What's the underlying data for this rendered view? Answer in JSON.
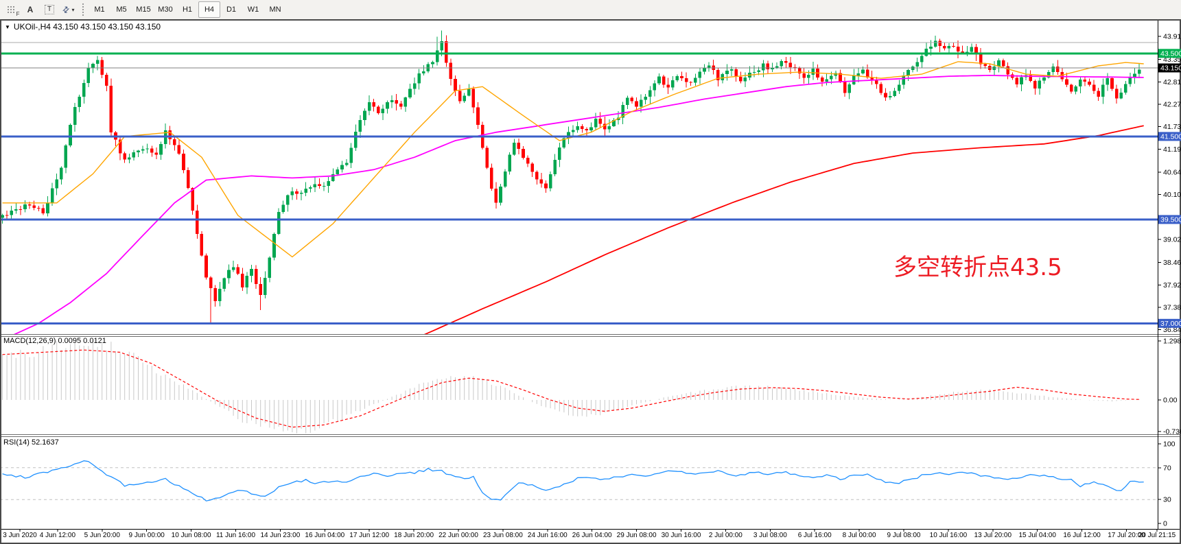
{
  "toolbar": {
    "tools": [
      {
        "name": "chart-grid-f-icon",
        "glyph": "F",
        "style": "grid"
      },
      {
        "name": "font-icon",
        "glyph": "A",
        "style": "plain"
      },
      {
        "name": "text-label-icon",
        "glyph": "T",
        "style": "dotted-box"
      },
      {
        "name": "crosshair-arrows-icon",
        "glyph": "⇄",
        "style": "arrow"
      }
    ],
    "caret_glyph": "▾",
    "timeframes": [
      "M1",
      "M5",
      "M15",
      "M30",
      "H1",
      "H4",
      "D1",
      "W1",
      "MN"
    ],
    "active_timeframe": "H4"
  },
  "chart": {
    "title": "UKOil-,H4  43.150 43.150 43.150 43.150",
    "symbol": "UKOil-",
    "timeframe": "H4",
    "dropdown_glyph": "▼",
    "annotation": {
      "text": "多空转折点43.5",
      "color": "#ED1C24"
    },
    "current_price": "43.150",
    "price_ticks": [
      "43.910",
      "43.355",
      "42.815",
      "42.275",
      "41.735",
      "41.195",
      "40.640",
      "40.100",
      "39.020",
      "38.465",
      "37.925",
      "37.385",
      "36.845"
    ],
    "price_badges": [
      {
        "value": "43.500",
        "price": 43.5,
        "color": "#00B050"
      },
      {
        "value": "43.150",
        "price": 43.15,
        "color": "#000000"
      },
      {
        "value": "41.500",
        "price": 41.5,
        "color": "#3A5FC8"
      },
      {
        "value": "39.500",
        "price": 39.5,
        "color": "#3A5FC8"
      },
      {
        "value": "37.000",
        "price": 37.0,
        "color": "#3A5FC8"
      }
    ],
    "hlines": [
      {
        "name": "gray-line-4376",
        "price": 43.76,
        "color": "#A8A8A8",
        "width": 1
      },
      {
        "name": "green-line-43500",
        "price": 43.5,
        "color": "#00B050",
        "width": 3
      },
      {
        "name": "blue-line-41500",
        "price": 41.5,
        "color": "#3A5FC8",
        "width": 3
      },
      {
        "name": "blue-line-39500",
        "price": 39.5,
        "color": "#3A5FC8",
        "width": 3
      },
      {
        "name": "blue-line-37000",
        "price": 37.0,
        "color": "#3A5FC8",
        "width": 3
      }
    ],
    "current_price_line": {
      "price": 43.15,
      "color": "#808080"
    }
  },
  "macd": {
    "label": "MACD(12,26,9) 0.0095 0.0121",
    "scale": [
      "1.2985",
      "0.00",
      "-0.7362"
    ]
  },
  "rsi": {
    "label": "RSI(14) 52.1637",
    "scale": [
      "100",
      "70",
      "30",
      "0"
    ],
    "levels": [
      70,
      30
    ]
  },
  "time_axis": [
    "3 Jun 2020",
    "4 Jun 12:00",
    "5 Jun 20:00",
    "9 Jun 00:00",
    "10 Jun 08:00",
    "11 Jun 16:00",
    "14 Jun 23:00",
    "16 Jun 04:00",
    "17 Jun 12:00",
    "18 Jun 20:00",
    "22 Jun 00:00",
    "23 Jun 08:00",
    "24 Jun 16:00",
    "26 Jun 04:00",
    "29 Jun 08:00",
    "30 Jun 16:00",
    "2 Jul 00:00",
    "3 Jul 08:00",
    "6 Jul 16:00",
    "8 Jul 00:00",
    "9 Jul 08:00",
    "10 Jul 16:00",
    "13 Jul 20:00",
    "15 Jul 04:00",
    "16 Jul 12:00",
    "17 Jul 20:00",
    "20 Jul 21:15"
  ],
  "chart_data": {
    "type": "candlestick",
    "symbol": "UKOil-",
    "timeframe": "H4",
    "title": "UKOil-,H4",
    "ohlc_current": {
      "open": 43.15,
      "high": 43.15,
      "low": 43.15,
      "close": 43.15
    },
    "price_axis_visible_range": [
      36.74,
      44.33
    ],
    "candle_up_color": "#00A650",
    "candle_down_color": "#FF0000",
    "ma_colors": {
      "fast": "#FFA500",
      "mid": "#FF00FF",
      "slow": "#FF0000"
    },
    "macd_colors": {
      "histogram": "#C8C8C8",
      "signal": "#FF0000"
    },
    "rsi_color": "#1E90FF",
    "level_color": "#C0C0C0",
    "close_path": [
      [
        0,
        39.6
      ],
      [
        6,
        39.9
      ],
      [
        9,
        39.7
      ],
      [
        13,
        40.7
      ],
      [
        15,
        41.8
      ],
      [
        19,
        43.2
      ],
      [
        21,
        43.3
      ],
      [
        23,
        42.7
      ],
      [
        24,
        41.6
      ],
      [
        27,
        40.9
      ],
      [
        30,
        41.2
      ],
      [
        34,
        41.1
      ],
      [
        36,
        41.6
      ],
      [
        39,
        41.1
      ],
      [
        41,
        40.2
      ],
      [
        43,
        39.2
      ],
      [
        45,
        38.1
      ],
      [
        47,
        37.5
      ],
      [
        49,
        38.1
      ],
      [
        51,
        38.4
      ],
      [
        53,
        37.9
      ],
      [
        55,
        38.3
      ],
      [
        57,
        37.7
      ],
      [
        59,
        38.6
      ],
      [
        61,
        39.7
      ],
      [
        64,
        40.2
      ],
      [
        66,
        40.1
      ],
      [
        69,
        40.4
      ],
      [
        71,
        40.3
      ],
      [
        73,
        40.6
      ],
      [
        76,
        40.9
      ],
      [
        78,
        41.6
      ],
      [
        81,
        42.3
      ],
      [
        83,
        42.1
      ],
      [
        86,
        42.4
      ],
      [
        88,
        42.2
      ],
      [
        90,
        42.7
      ],
      [
        93,
        43.1
      ],
      [
        95,
        43.3
      ],
      [
        97,
        43.75
      ],
      [
        99,
        42.9
      ],
      [
        101,
        42.4
      ],
      [
        103,
        42.6
      ],
      [
        105,
        41.8
      ],
      [
        107,
        40.7
      ],
      [
        109,
        39.9
      ],
      [
        111,
        40.7
      ],
      [
        113,
        41.4
      ],
      [
        115,
        41.0
      ],
      [
        118,
        40.5
      ],
      [
        120,
        40.3
      ],
      [
        122,
        40.9
      ],
      [
        124,
        41.5
      ],
      [
        127,
        41.8
      ],
      [
        129,
        41.6
      ],
      [
        131,
        41.9
      ],
      [
        133,
        41.7
      ],
      [
        136,
        42.0
      ],
      [
        138,
        42.4
      ],
      [
        140,
        42.2
      ],
      [
        143,
        42.6
      ],
      [
        145,
        42.9
      ],
      [
        147,
        42.7
      ],
      [
        149,
        43.0
      ],
      [
        152,
        42.8
      ],
      [
        154,
        43.1
      ],
      [
        156,
        43.2
      ],
      [
        158,
        42.9
      ],
      [
        161,
        43.1
      ],
      [
        163,
        42.8
      ],
      [
        165,
        43.0
      ],
      [
        168,
        43.2
      ],
      [
        170,
        43.1
      ],
      [
        172,
        43.3
      ],
      [
        175,
        43.1
      ],
      [
        177,
        42.9
      ],
      [
        179,
        43.1
      ],
      [
        181,
        42.8
      ],
      [
        184,
        43.0
      ],
      [
        186,
        42.6
      ],
      [
        188,
        42.9
      ],
      [
        190,
        43.1
      ],
      [
        193,
        42.7
      ],
      [
        195,
        42.4
      ],
      [
        197,
        42.6
      ],
      [
        199,
        43.0
      ],
      [
        202,
        43.3
      ],
      [
        204,
        43.6
      ],
      [
        206,
        43.75
      ],
      [
        208,
        43.6
      ],
      [
        210,
        43.7
      ],
      [
        212,
        43.5
      ],
      [
        214,
        43.6
      ],
      [
        216,
        43.3
      ],
      [
        218,
        43.1
      ],
      [
        220,
        43.3
      ],
      [
        222,
        43.0
      ],
      [
        224,
        42.8
      ],
      [
        226,
        43.0
      ],
      [
        228,
        42.7
      ],
      [
        230,
        42.9
      ],
      [
        232,
        43.2
      ],
      [
        234,
        42.9
      ],
      [
        236,
        42.6
      ],
      [
        238,
        42.9
      ],
      [
        240,
        42.7
      ],
      [
        242,
        42.5
      ],
      [
        244,
        42.9
      ],
      [
        246,
        42.4
      ],
      [
        248,
        42.8
      ],
      [
        250,
        43.05
      ],
      [
        251,
        43.15
      ]
    ],
    "forced_extremes": {
      "46": {
        "low": 37.02
      },
      "57": {
        "low": 37.32
      },
      "96": {
        "high": 43.9
      },
      "97": {
        "high": 44.05
      },
      "206": {
        "high": 43.93
      }
    },
    "ma_fast_orange": [
      [
        0,
        39.9
      ],
      [
        12,
        39.9
      ],
      [
        20,
        40.6
      ],
      [
        27,
        41.5
      ],
      [
        37,
        41.6
      ],
      [
        44,
        41.0
      ],
      [
        52,
        39.6
      ],
      [
        64,
        38.6
      ],
      [
        73,
        39.4
      ],
      [
        82,
        40.5
      ],
      [
        91,
        41.6
      ],
      [
        100,
        42.6
      ],
      [
        106,
        42.7
      ],
      [
        115,
        42.0
      ],
      [
        123,
        41.4
      ],
      [
        130,
        41.6
      ],
      [
        139,
        42.1
      ],
      [
        148,
        42.5
      ],
      [
        158,
        42.9
      ],
      [
        167,
        43.0
      ],
      [
        176,
        43.05
      ],
      [
        185,
        43.0
      ],
      [
        194,
        42.9
      ],
      [
        203,
        43.0
      ],
      [
        211,
        43.3
      ],
      [
        218,
        43.25
      ],
      [
        226,
        43.0
      ],
      [
        233,
        42.95
      ],
      [
        242,
        43.2
      ],
      [
        248,
        43.28
      ],
      [
        252,
        43.25
      ]
    ],
    "ma_mid_magenta": [
      [
        0,
        36.6
      ],
      [
        8,
        37.0
      ],
      [
        15,
        37.5
      ],
      [
        23,
        38.2
      ],
      [
        30,
        39.0
      ],
      [
        38,
        39.9
      ],
      [
        45,
        40.45
      ],
      [
        55,
        40.55
      ],
      [
        64,
        40.5
      ],
      [
        73,
        40.55
      ],
      [
        82,
        40.7
      ],
      [
        91,
        41.0
      ],
      [
        100,
        41.4
      ],
      [
        109,
        41.6
      ],
      [
        118,
        41.75
      ],
      [
        127,
        41.9
      ],
      [
        136,
        42.05
      ],
      [
        145,
        42.2
      ],
      [
        155,
        42.4
      ],
      [
        164,
        42.55
      ],
      [
        173,
        42.7
      ],
      [
        182,
        42.8
      ],
      [
        191,
        42.85
      ],
      [
        200,
        42.9
      ],
      [
        209,
        42.95
      ],
      [
        218,
        42.97
      ],
      [
        227,
        42.95
      ],
      [
        236,
        42.94
      ],
      [
        245,
        42.93
      ],
      [
        252,
        42.92
      ]
    ],
    "ma_slow_red": [
      [
        93,
        36.72
      ],
      [
        106,
        37.35
      ],
      [
        120,
        38.0
      ],
      [
        133,
        38.65
      ],
      [
        147,
        39.3
      ],
      [
        161,
        39.9
      ],
      [
        174,
        40.4
      ],
      [
        188,
        40.85
      ],
      [
        201,
        41.1
      ],
      [
        215,
        41.22
      ],
      [
        230,
        41.32
      ],
      [
        242,
        41.52
      ],
      [
        252,
        41.76
      ]
    ],
    "macd_range": [
      -0.7362,
      1.2985
    ],
    "macd_current": [
      0.0095,
      0.0121
    ],
    "macd_histogram": [
      [
        0,
        0.9
      ],
      [
        9,
        1.1
      ],
      [
        15,
        1.25
      ],
      [
        21,
        1.3
      ],
      [
        27,
        1.1
      ],
      [
        35,
        0.6
      ],
      [
        42,
        0.2
      ],
      [
        47,
        -0.1
      ],
      [
        53,
        -0.45
      ],
      [
        61,
        -0.65
      ],
      [
        65,
        -0.74
      ],
      [
        70,
        -0.6
      ],
      [
        76,
        -0.35
      ],
      [
        82,
        -0.1
      ],
      [
        88,
        0.15
      ],
      [
        94,
        0.4
      ],
      [
        100,
        0.55
      ],
      [
        106,
        0.45
      ],
      [
        112,
        0.2
      ],
      [
        118,
        -0.1
      ],
      [
        124,
        -0.3
      ],
      [
        130,
        -0.35
      ],
      [
        136,
        -0.2
      ],
      [
        142,
        -0.05
      ],
      [
        148,
        0.1
      ],
      [
        155,
        0.2
      ],
      [
        161,
        0.28
      ],
      [
        167,
        0.3
      ],
      [
        173,
        0.26
      ],
      [
        179,
        0.18
      ],
      [
        185,
        0.1
      ],
      [
        191,
        0.04
      ],
      [
        197,
        0.0
      ],
      [
        203,
        0.06
      ],
      [
        209,
        0.15
      ],
      [
        215,
        0.22
      ],
      [
        221,
        0.2
      ],
      [
        227,
        0.12
      ],
      [
        233,
        0.05
      ],
      [
        239,
        0.0
      ],
      [
        245,
        -0.03
      ],
      [
        251,
        0.01
      ]
    ],
    "macd_signal": [
      [
        0,
        1.0
      ],
      [
        9,
        1.05
      ],
      [
        18,
        1.1
      ],
      [
        26,
        1.05
      ],
      [
        33,
        0.8
      ],
      [
        41,
        0.35
      ],
      [
        48,
        -0.05
      ],
      [
        56,
        -0.4
      ],
      [
        64,
        -0.6
      ],
      [
        71,
        -0.55
      ],
      [
        79,
        -0.35
      ],
      [
        85,
        -0.1
      ],
      [
        91,
        0.15
      ],
      [
        97,
        0.38
      ],
      [
        103,
        0.48
      ],
      [
        109,
        0.42
      ],
      [
        115,
        0.22
      ],
      [
        121,
        0.0
      ],
      [
        127,
        -0.18
      ],
      [
        133,
        -0.25
      ],
      [
        139,
        -0.18
      ],
      [
        145,
        -0.06
      ],
      [
        151,
        0.06
      ],
      [
        157,
        0.16
      ],
      [
        163,
        0.24
      ],
      [
        170,
        0.27
      ],
      [
        176,
        0.25
      ],
      [
        182,
        0.2
      ],
      [
        188,
        0.13
      ],
      [
        194,
        0.06
      ],
      [
        200,
        0.02
      ],
      [
        206,
        0.06
      ],
      [
        212,
        0.13
      ],
      [
        218,
        0.19
      ],
      [
        224,
        0.28
      ],
      [
        230,
        0.22
      ],
      [
        236,
        0.13
      ],
      [
        242,
        0.07
      ],
      [
        248,
        0.02
      ],
      [
        251,
        0.01
      ]
    ],
    "rsi_range": [
      0,
      100
    ],
    "rsi_current": 52.1637,
    "rsi_series": [
      [
        0,
        62
      ],
      [
        5,
        58
      ],
      [
        9,
        64
      ],
      [
        14,
        70
      ],
      [
        18,
        80
      ],
      [
        23,
        62
      ],
      [
        27,
        48
      ],
      [
        32,
        52
      ],
      [
        36,
        56
      ],
      [
        41,
        40
      ],
      [
        45,
        29
      ],
      [
        48,
        33
      ],
      [
        52,
        42
      ],
      [
        55,
        38
      ],
      [
        58,
        33
      ],
      [
        61,
        45
      ],
      [
        64,
        52
      ],
      [
        67,
        54
      ],
      [
        70,
        50
      ],
      [
        73,
        54
      ],
      [
        76,
        52
      ],
      [
        79,
        58
      ],
      [
        82,
        62
      ],
      [
        85,
        60
      ],
      [
        88,
        62
      ],
      [
        91,
        64
      ],
      [
        94,
        68
      ],
      [
        97,
        66
      ],
      [
        99,
        60
      ],
      [
        102,
        55
      ],
      [
        104,
        58
      ],
      [
        106,
        40
      ],
      [
        108,
        30
      ],
      [
        110,
        28
      ],
      [
        112,
        42
      ],
      [
        114,
        52
      ],
      [
        117,
        48
      ],
      [
        119,
        44
      ],
      [
        121,
        42
      ],
      [
        124,
        50
      ],
      [
        127,
        56
      ],
      [
        130,
        58
      ],
      [
        133,
        55
      ],
      [
        136,
        58
      ],
      [
        139,
        62
      ],
      [
        142,
        60
      ],
      [
        145,
        64
      ],
      [
        148,
        66
      ],
      [
        152,
        62
      ],
      [
        155,
        64
      ],
      [
        158,
        66
      ],
      [
        161,
        60
      ],
      [
        164,
        62
      ],
      [
        167,
        64
      ],
      [
        170,
        62
      ],
      [
        173,
        64
      ],
      [
        176,
        60
      ],
      [
        179,
        58
      ],
      [
        182,
        60
      ],
      [
        185,
        56
      ],
      [
        188,
        60
      ],
      [
        191,
        62
      ],
      [
        194,
        54
      ],
      [
        197,
        50
      ],
      [
        200,
        54
      ],
      [
        203,
        60
      ],
      [
        206,
        64
      ],
      [
        209,
        62
      ],
      [
        212,
        64
      ],
      [
        215,
        62
      ],
      [
        218,
        58
      ],
      [
        221,
        55
      ],
      [
        224,
        58
      ],
      [
        227,
        60
      ],
      [
        230,
        61
      ],
      [
        234,
        56
      ],
      [
        236,
        57
      ],
      [
        238,
        47
      ],
      [
        241,
        52
      ],
      [
        243,
        48
      ],
      [
        245,
        43
      ],
      [
        247,
        41
      ],
      [
        248,
        46
      ],
      [
        249,
        53
      ],
      [
        252,
        52.2
      ]
    ]
  }
}
